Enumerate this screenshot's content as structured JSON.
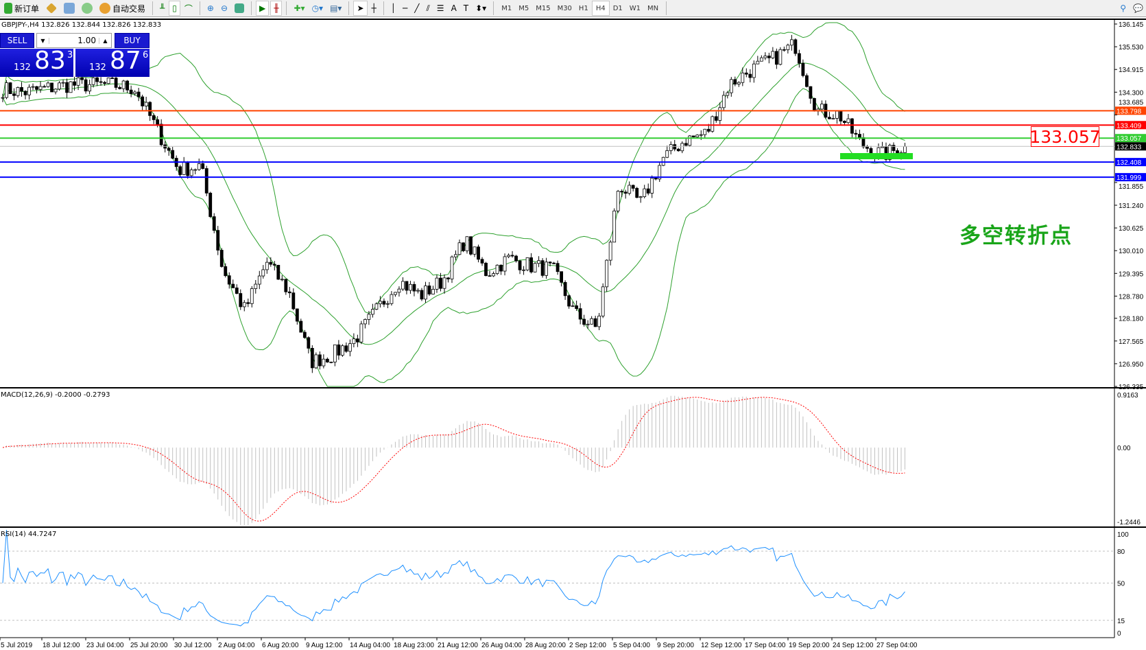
{
  "toolbar": {
    "new_order": "新订单",
    "auto_trading": "自动交易",
    "timeframes": [
      "M1",
      "M5",
      "M15",
      "M30",
      "H1",
      "H4",
      "D1",
      "W1",
      "MN"
    ],
    "active_timeframe": "H4"
  },
  "chart": {
    "header": "GBPJPY-,H4  132.826 132.844 132.826 132.833",
    "sell_label": "SELL",
    "buy_label": "BUY",
    "lot": "1.00",
    "sell_price": {
      "prefix": "132",
      "big": "83",
      "sup": "3"
    },
    "buy_price": {
      "prefix": "132",
      "big": "87",
      "sup": "6"
    },
    "big_price_label": "133.057",
    "annotation": "多空转折点",
    "price_axis": [
      "136.145",
      "135.530",
      "134.915",
      "134.300",
      "133.685",
      "131.855",
      "131.240",
      "130.625",
      "130.010",
      "129.395",
      "128.780",
      "128.180",
      "127.565",
      "126.950",
      "126.335"
    ],
    "levels": [
      {
        "value": "133.798",
        "color": "#ff4500"
      },
      {
        "value": "133.409",
        "color": "#ff0000"
      },
      {
        "value": "133.057",
        "color": "#32cd32"
      },
      {
        "value": "132.833",
        "color": "#000000",
        "current": true
      },
      {
        "value": "132.408",
        "color": "#0000ff"
      },
      {
        "value": "131.999",
        "color": "#0000ff"
      }
    ],
    "time_axis": [
      "5 Jul 2019",
      "18 Jul 12:00",
      "23 Jul 04:00",
      "25 Jul 20:00",
      "30 Jul 12:00",
      "2 Aug 04:00",
      "6 Aug 20:00",
      "9 Aug 12:00",
      "14 Aug 04:00",
      "18 Aug 23:00",
      "21 Aug 12:00",
      "26 Aug 04:00",
      "28 Aug 20:00",
      "2 Sep 12:00",
      "5 Sep 04:00",
      "9 Sep 20:00",
      "12 Sep 12:00",
      "17 Sep 04:00",
      "19 Sep 20:00",
      "24 Sep 12:00",
      "27 Sep 04:00"
    ]
  },
  "macd": {
    "label": "MACD(12,26,9) -0.2000 -0.2793",
    "axis": [
      "0.9163",
      "0.00",
      "-1.2446"
    ]
  },
  "rsi": {
    "label": "RSI(14) 44.7247",
    "axis": [
      "100",
      "80",
      "50",
      "15",
      "0"
    ]
  },
  "chart_data": {
    "type": "candlestick",
    "symbol": "GBPJPY-",
    "timeframe": "H4",
    "approx_close_path": [
      134.38,
      134.3,
      134.4,
      134.5,
      134.5,
      134.5,
      134.4,
      133.3,
      132.2,
      132.3,
      129.5,
      128.4,
      129.7,
      128.9,
      127.0,
      127.2,
      127.6,
      128.4,
      129.2,
      128.8,
      129.2,
      130.3,
      129.4,
      129.8,
      129.6,
      129.5,
      128.3,
      127.9,
      131.8,
      131.3,
      132.5,
      133.0,
      133.2,
      134.5,
      134.9,
      135.2,
      135.6,
      133.8,
      133.7,
      132.9,
      132.6,
      132.833
    ],
    "ylim": [
      126.335,
      136.145
    ],
    "colors": {
      "bollinger": "#2ca02c",
      "macd_hist": "#c0c0c0",
      "macd_signal": "#ff0000",
      "rsi": "#1e90ff"
    }
  }
}
